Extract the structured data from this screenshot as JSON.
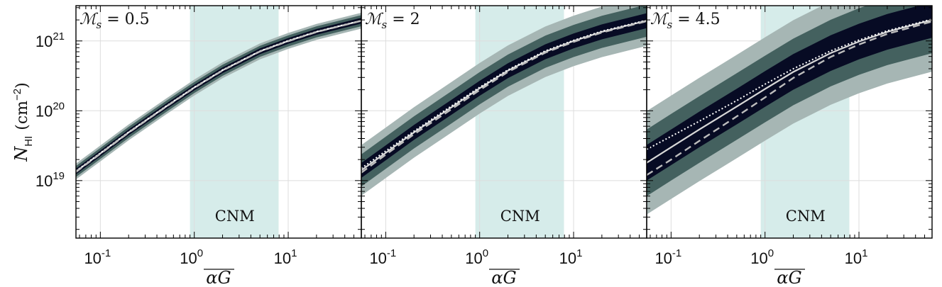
{
  "chart_data": {
    "type": "line",
    "layout": "three panels side by side, shared y axis",
    "xlabel": "αG",
    "ylabel": "N_HI",
    "ylabel_unit": "(cm",
    "ylabel_unit_exp": "−2",
    "ylabel_unit_close": ")",
    "xscale": "log",
    "yscale": "log",
    "xlim": [
      0.055,
      60
    ],
    "ylim": [
      1.5e+18,
      3.2e+21
    ],
    "x_ticks": [
      {
        "value": 0.1,
        "base": "10",
        "exp": "-1"
      },
      {
        "value": 1,
        "base": "10",
        "exp": "0"
      },
      {
        "value": 10,
        "base": "10",
        "exp": "1"
      }
    ],
    "y_ticks": [
      {
        "value": 1e+19,
        "base": "10",
        "exp": "19"
      },
      {
        "value": 1e+20,
        "base": "10",
        "exp": "20"
      },
      {
        "value": 1e+21,
        "base": "10",
        "exp": "21"
      }
    ],
    "grid": true,
    "band": {
      "label": "CNM",
      "x_range": [
        0.9,
        7.9
      ],
      "color": "#d6ecea"
    },
    "colors": {
      "sigma1": "#070b24",
      "sigma2": "#44615f",
      "sigma3": "#a6b6b4",
      "line": "#d8d8d8",
      "axis": "#000000",
      "grid": "#dddddd"
    },
    "x": [
      0.055,
      0.1,
      0.2,
      0.5,
      1,
      2,
      5,
      10,
      20,
      60
    ],
    "panels": [
      {
        "title_symbol": "ℳ",
        "title_sub": "s",
        "title_value": " = 0.5",
        "median": [
          1.35e+19,
          2.45e+19,
          4.9e+19,
          1.15e+20,
          2.15e+20,
          3.8e+20,
          7.1e+20,
          1e+21,
          1.35e+21,
          1.95e+21
        ],
        "mean": [
          1.37e+19,
          2.48e+19,
          4.95e+19,
          1.16e+20,
          2.17e+20,
          3.83e+20,
          7.15e+20,
          1.01e+21,
          1.36e+21,
          1.96e+21
        ],
        "dashed": [
          1.33e+19,
          2.42e+19,
          4.85e+19,
          1.14e+20,
          2.13e+20,
          3.77e+20,
          7.05e+20,
          9.9e+20,
          1.34e+21,
          1.94e+21
        ],
        "sigma_factors": [
          1.1,
          1.2,
          1.3
        ]
      },
      {
        "title_symbol": "ℳ",
        "title_sub": "s",
        "title_value": " = 2",
        "median": [
          1.4e+19,
          2.5e+19,
          4.9e+19,
          1.12e+20,
          2.1e+20,
          3.75e+20,
          7e+20,
          1e+21,
          1.35e+21,
          1.95e+21
        ],
        "mean": [
          1.5e+19,
          2.65e+19,
          5.1e+19,
          1.17e+20,
          2.17e+20,
          3.85e+20,
          7.2e+20,
          1.02e+21,
          1.38e+21,
          1.98e+21
        ],
        "dashed": [
          1.3e+19,
          2.35e+19,
          4.6e+19,
          1.05e+20,
          1.98e+20,
          3.6e+20,
          6.8e+20,
          9.7e+20,
          1.32e+21,
          1.92e+21
        ],
        "sigma_factors": [
          1.28,
          1.7,
          2.3
        ]
      },
      {
        "title_symbol": "ℳ",
        "title_sub": "s",
        "title_value": " = 4.5",
        "median": [
          1.8e+19,
          3e+19,
          5.4e+19,
          1.15e+20,
          2.05e+20,
          3.6e+20,
          6.7e+20,
          9.8e+20,
          1.35e+21,
          2e+21
        ],
        "mean": [
          2.8e+19,
          4.3e+19,
          7.1e+19,
          1.4e+20,
          2.4e+20,
          4e+20,
          7.2e+20,
          1.03e+21,
          1.4e+21,
          2.05e+21
        ],
        "dashed": [
          1.2e+19,
          2e+19,
          3.7e+19,
          8.3e+19,
          1.55e+20,
          2.95e+20,
          5.9e+20,
          8.9e+20,
          1.26e+21,
          1.9e+21
        ],
        "sigma_factors": [
          1.8,
          3.0,
          5.5
        ]
      }
    ]
  }
}
